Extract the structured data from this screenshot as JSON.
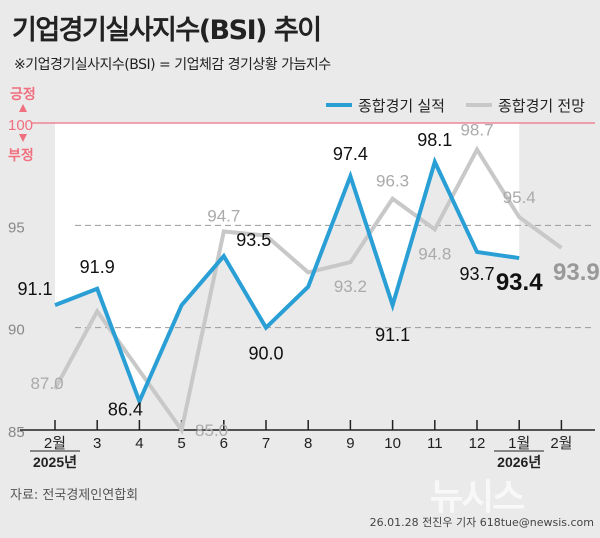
{
  "title": "기업경기실사지수(BSI) 추이",
  "subtitle": "※기업경기실사지수(BSI) = 기업체감 경기상황 가늠지수",
  "source": "자료: 전국경제인연합회",
  "credit": "26.01.28 전진우 기자 618tue@newsis.com",
  "watermark": "뉴시스",
  "positive_label": "긍정",
  "negative_label": "부정",
  "colors": {
    "actual": "#2a9fd6",
    "forecast": "#c8c8c8",
    "reference": "#f07080"
  },
  "chart_data": {
    "type": "line",
    "ylim": [
      85,
      100
    ],
    "yticks": [
      85,
      90,
      95,
      100
    ],
    "reference_line": 100,
    "grid": "dashed at 90 and 95",
    "legend_placement": "top-right",
    "categories": [
      "2월",
      "3",
      "4",
      "5",
      "6",
      "7",
      "8",
      "9",
      "10",
      "11",
      "12",
      "1월",
      "2월"
    ],
    "year_labels": [
      {
        "index": 0,
        "label": "2025년"
      },
      {
        "index": 11,
        "label": "2026년"
      }
    ],
    "series": [
      {
        "name": "종합경기 실적",
        "values": [
          91.1,
          91.9,
          86.4,
          91.1,
          93.5,
          90.0,
          92.0,
          97.4,
          91.1,
          98.1,
          93.7,
          93.4,
          null
        ],
        "labels": [
          "91.1",
          "91.9",
          "86.4",
          null,
          "93.5",
          "90.0",
          null,
          "97.4",
          "91.1",
          "98.1",
          "93.7",
          "93.4",
          null
        ]
      },
      {
        "name": "종합경기 전망",
        "values": [
          87.0,
          90.8,
          87.9,
          85.0,
          94.7,
          94.5,
          92.7,
          93.2,
          96.3,
          94.8,
          98.7,
          95.4,
          93.9
        ],
        "labels": [
          "87.0",
          null,
          null,
          "85.0",
          "94.7",
          null,
          null,
          "93.2",
          "96.3",
          "94.8",
          "98.7",
          "95.4",
          "93.9"
        ]
      }
    ]
  }
}
